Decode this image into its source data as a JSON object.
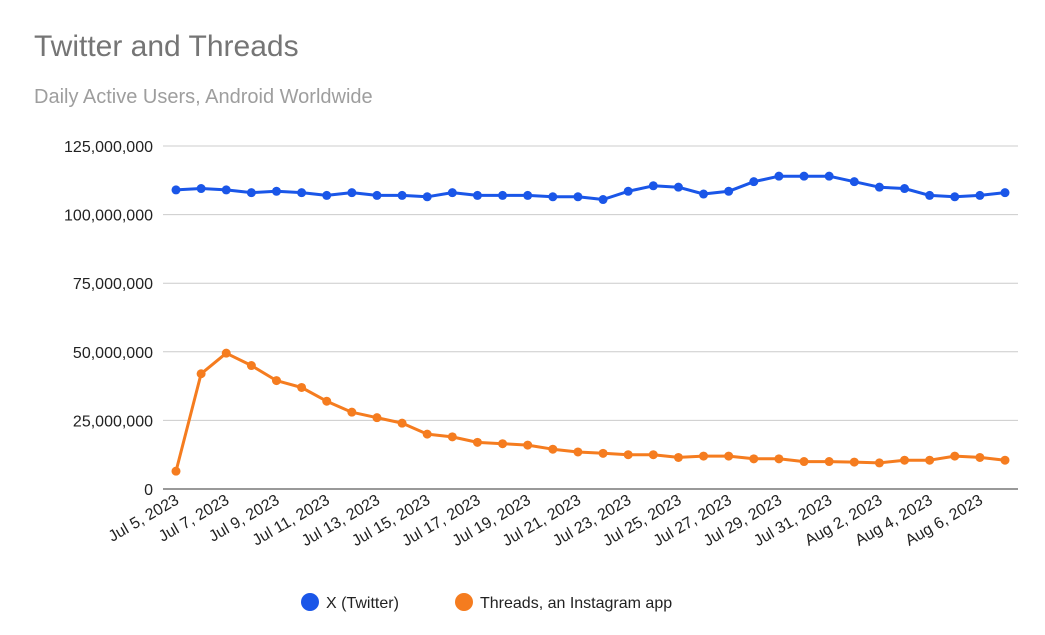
{
  "chart_data": {
    "type": "line",
    "title": "Twitter and Threads",
    "subtitle": "Daily Active Users, Android Worldwide",
    "xlabel": "",
    "ylabel": "",
    "ylim": [
      0,
      125000000
    ],
    "y_ticks": [
      "125,000,000",
      "100,000,000",
      "75,000,000",
      "50,000,000",
      "25,000,000",
      "0"
    ],
    "y_tick_values": [
      125000000,
      100000000,
      75000000,
      50000000,
      25000000,
      0
    ],
    "x": [
      "Jul 5, 2023",
      "Jul 6, 2023",
      "Jul 7, 2023",
      "Jul 8, 2023",
      "Jul 9, 2023",
      "Jul 10, 2023",
      "Jul 11, 2023",
      "Jul 12, 2023",
      "Jul 13, 2023",
      "Jul 14, 2023",
      "Jul 15, 2023",
      "Jul 16, 2023",
      "Jul 17, 2023",
      "Jul 18, 2023",
      "Jul 19, 2023",
      "Jul 20, 2023",
      "Jul 21, 2023",
      "Jul 22, 2023",
      "Jul 23, 2023",
      "Jul 24, 2023",
      "Jul 25, 2023",
      "Jul 26, 2023",
      "Jul 27, 2023",
      "Jul 28, 2023",
      "Jul 29, 2023",
      "Jul 30, 2023",
      "Jul 31, 2023",
      "Aug 1, 2023",
      "Aug 2, 2023",
      "Aug 3, 2023",
      "Aug 4, 2023",
      "Aug 5, 2023",
      "Aug 6, 2023",
      "Aug 7, 2023"
    ],
    "x_tick_labels": [
      "Jul 5, 2023",
      "Jul 7, 2023",
      "Jul 9, 2023",
      "Jul 11, 2023",
      "Jul 13, 2023",
      "Jul 15, 2023",
      "Jul 17, 2023",
      "Jul 19, 2023",
      "Jul 21, 2023",
      "Jul 23, 2023",
      "Jul 25, 2023",
      "Jul 27, 2023",
      "Jul 29, 2023",
      "Jul 31, 2023",
      "Aug 2, 2023",
      "Aug 4, 2023",
      "Aug 6, 2023"
    ],
    "grid": true,
    "legend_position": "bottom",
    "series": [
      {
        "name": "X (Twitter)",
        "color": "#1a56e8",
        "values": [
          109000000,
          109500000,
          109000000,
          108000000,
          108500000,
          108000000,
          107000000,
          108000000,
          107000000,
          107000000,
          106500000,
          108000000,
          107000000,
          107000000,
          107000000,
          106500000,
          106500000,
          105500000,
          108500000,
          110500000,
          110000000,
          107500000,
          108500000,
          112000000,
          114000000,
          114000000,
          114000000,
          112000000,
          110000000,
          109500000,
          107000000,
          106500000,
          107000000,
          108000000
        ]
      },
      {
        "name": "Threads, an Instagram app",
        "color": "#f57c1f",
        "values": [
          6500000,
          42000000,
          49500000,
          45000000,
          39500000,
          37000000,
          32000000,
          28000000,
          26000000,
          24000000,
          20000000,
          19000000,
          17000000,
          16500000,
          16000000,
          14500000,
          13500000,
          13000000,
          12500000,
          12500000,
          11500000,
          12000000,
          12000000,
          11000000,
          11000000,
          10000000,
          10000000,
          9800000,
          9500000,
          10500000,
          10500000,
          12000000,
          11500000,
          10500000
        ]
      }
    ]
  }
}
